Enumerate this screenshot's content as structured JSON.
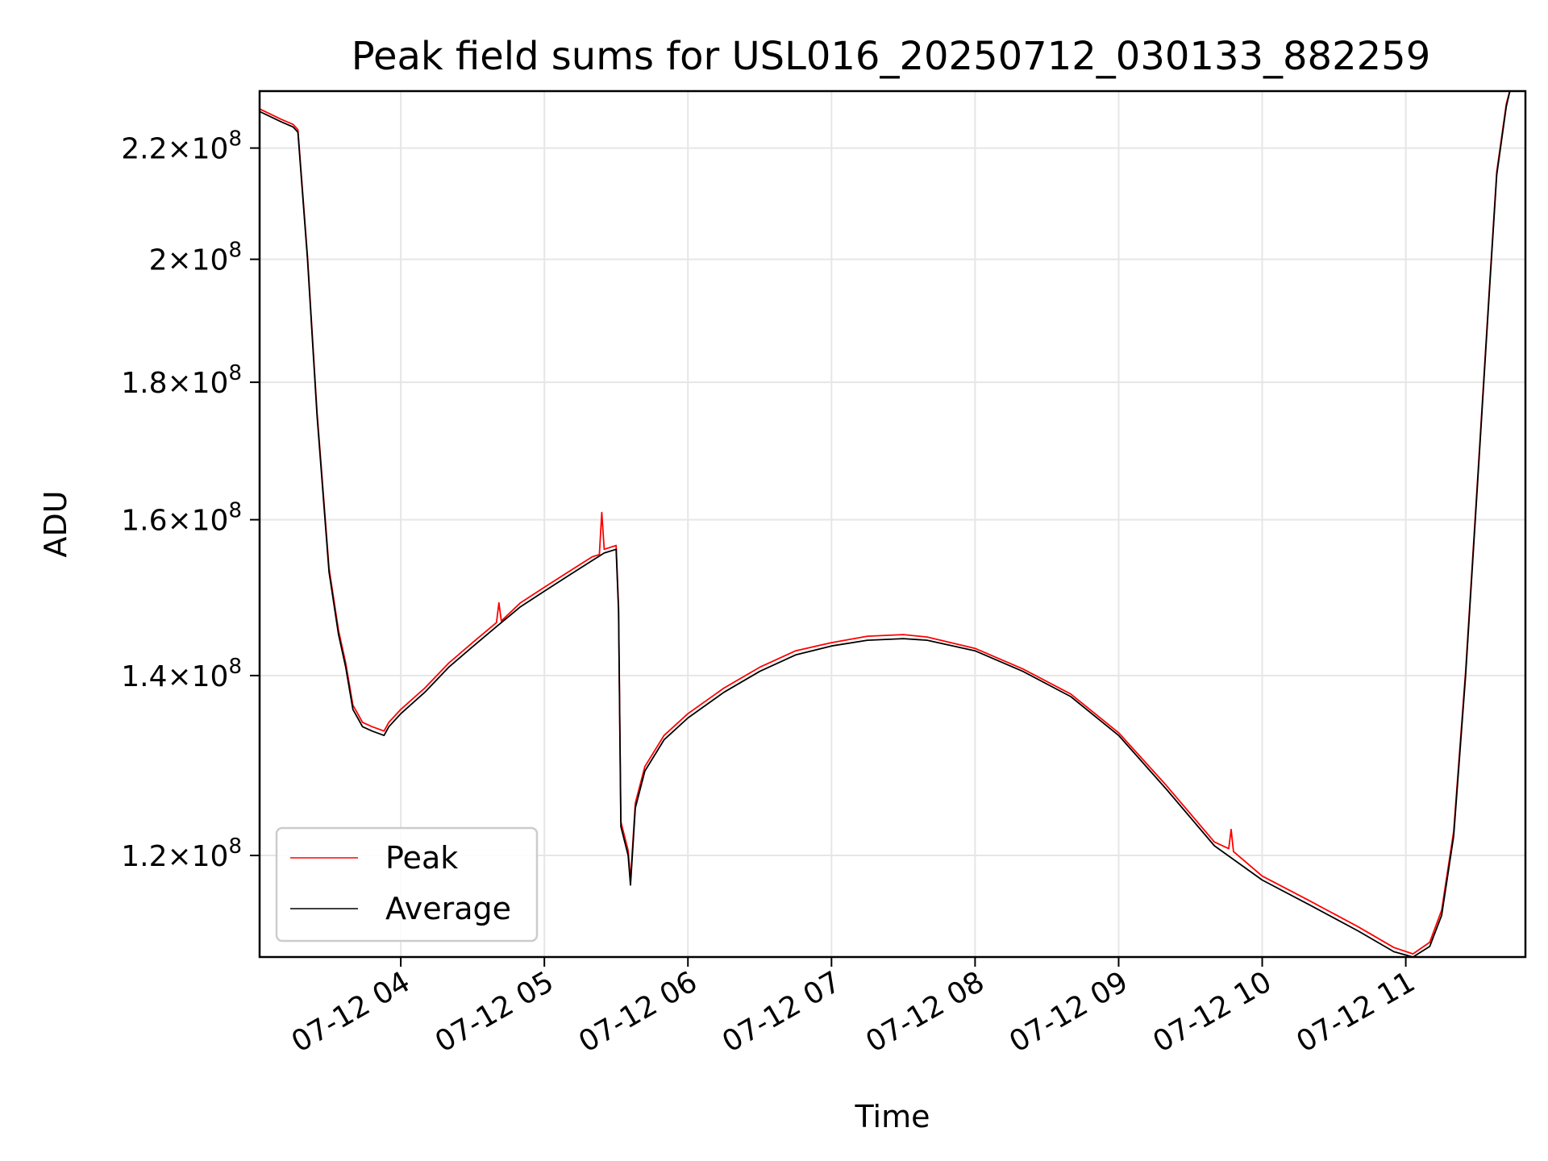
{
  "chart_data": {
    "type": "line",
    "title": "Peak field sums for USL016_20250712_030133_882259",
    "xlabel": "Time",
    "ylabel": "ADU",
    "y_scale": "log",
    "xlim": [
      "2025-07-12 03:01",
      "2025-07-12 11:50"
    ],
    "ylim": [
      110000000,
      231000000
    ],
    "grid": true,
    "legend_position": "lower-left",
    "x_ticks": [
      {
        "value": "2025-07-12 04:00",
        "label": "07-12 04"
      },
      {
        "value": "2025-07-12 05:00",
        "label": "07-12 05"
      },
      {
        "value": "2025-07-12 06:00",
        "label": "07-12 06"
      },
      {
        "value": "2025-07-12 07:00",
        "label": "07-12 07"
      },
      {
        "value": "2025-07-12 08:00",
        "label": "07-12 08"
      },
      {
        "value": "2025-07-12 09:00",
        "label": "07-12 09"
      },
      {
        "value": "2025-07-12 10:00",
        "label": "07-12 10"
      },
      {
        "value": "2025-07-12 11:00",
        "label": "07-12 11"
      }
    ],
    "y_ticks": [
      {
        "value": 120000000,
        "mantissa": "1.2",
        "base": "10",
        "exponent": "8"
      },
      {
        "value": 140000000,
        "mantissa": "1.4",
        "base": "10",
        "exponent": "8"
      },
      {
        "value": 160000000,
        "mantissa": "1.6",
        "base": "10",
        "exponent": "8"
      },
      {
        "value": 180000000,
        "mantissa": "1.8",
        "base": "10",
        "exponent": "8"
      },
      {
        "value": 200000000,
        "mantissa": "2",
        "base": "10",
        "exponent": "8"
      },
      {
        "value": 220000000,
        "mantissa": "2.2",
        "base": "10",
        "exponent": "8"
      }
    ],
    "series": [
      {
        "name": "Average",
        "color": "#000000",
        "x": [
          "2025-07-12 03:01",
          "2025-07-12 03:10",
          "2025-07-12 03:15",
          "2025-07-12 03:17",
          "2025-07-12 03:21",
          "2025-07-12 03:25",
          "2025-07-12 03:30",
          "2025-07-12 03:34",
          "2025-07-12 03:37",
          "2025-07-12 03:40",
          "2025-07-12 03:42",
          "2025-07-12 03:44",
          "2025-07-12 03:48",
          "2025-07-12 03:53",
          "2025-07-12 03:55",
          "2025-07-12 04:00",
          "2025-07-12 04:10",
          "2025-07-12 04:20",
          "2025-07-12 04:30",
          "2025-07-12 04:40",
          "2025-07-12 04:50",
          "2025-07-12 05:00",
          "2025-07-12 05:10",
          "2025-07-12 05:20",
          "2025-07-12 05:25",
          "2025-07-12 05:30",
          "2025-07-12 05:31",
          "2025-07-12 05:32",
          "2025-07-12 05:33",
          "2025-07-12 05:35",
          "2025-07-12 05:36",
          "2025-07-12 05:38",
          "2025-07-12 05:42",
          "2025-07-12 05:50",
          "2025-07-12 06:00",
          "2025-07-12 06:15",
          "2025-07-12 06:30",
          "2025-07-12 06:45",
          "2025-07-12 07:00",
          "2025-07-12 07:15",
          "2025-07-12 07:30",
          "2025-07-12 07:40",
          "2025-07-12 08:00",
          "2025-07-12 08:20",
          "2025-07-12 08:40",
          "2025-07-12 09:00",
          "2025-07-12 09:20",
          "2025-07-12 09:40",
          "2025-07-12 10:00",
          "2025-07-12 10:20",
          "2025-07-12 10:40",
          "2025-07-12 10:55",
          "2025-07-12 11:03",
          "2025-07-12 11:10",
          "2025-07-12 11:15",
          "2025-07-12 11:20",
          "2025-07-12 11:25",
          "2025-07-12 11:30",
          "2025-07-12 11:35",
          "2025-07-12 11:38",
          "2025-07-12 11:42",
          "2025-07-12 11:44"
        ],
        "values": [
          227000000,
          225000000,
          224000000,
          223000000,
          200000000,
          175000000,
          153000000,
          145000000,
          141000000,
          136000000,
          135000000,
          134000000,
          133500000,
          133000000,
          134000000,
          135500000,
          138000000,
          141000000,
          143500000,
          146000000,
          148500000,
          150500000,
          152500000,
          154500000,
          155500000,
          156000000,
          148000000,
          123000000,
          122000000,
          120000000,
          117000000,
          125000000,
          129000000,
          132500000,
          135000000,
          138000000,
          140500000,
          142500000,
          143600000,
          144300000,
          144500000,
          144300000,
          143000000,
          140500000,
          137500000,
          133000000,
          127000000,
          121000000,
          117500000,
          115000000,
          112500000,
          110500000,
          110000000,
          111000000,
          114000000,
          122000000,
          140000000,
          165000000,
          195000000,
          215000000,
          228000000,
          232000000
        ]
      },
      {
        "name": "Peak",
        "color": "#ff0000",
        "x": [
          "2025-07-12 03:01",
          "2025-07-12 03:10",
          "2025-07-12 03:15",
          "2025-07-12 03:17",
          "2025-07-12 03:21",
          "2025-07-12 03:25",
          "2025-07-12 03:30",
          "2025-07-12 03:34",
          "2025-07-12 03:37",
          "2025-07-12 03:40",
          "2025-07-12 03:42",
          "2025-07-12 03:44",
          "2025-07-12 03:48",
          "2025-07-12 03:53",
          "2025-07-12 03:55",
          "2025-07-12 04:00",
          "2025-07-12 04:10",
          "2025-07-12 04:20",
          "2025-07-12 04:30",
          "2025-07-12 04:40",
          "2025-07-12 04:41",
          "2025-07-12 04:42",
          "2025-07-12 04:50",
          "2025-07-12 05:00",
          "2025-07-12 05:10",
          "2025-07-12 05:20",
          "2025-07-12 05:23",
          "2025-07-12 05:24",
          "2025-07-12 05:25",
          "2025-07-12 05:30",
          "2025-07-12 05:31",
          "2025-07-12 05:32",
          "2025-07-12 05:33",
          "2025-07-12 05:35",
          "2025-07-12 05:36",
          "2025-07-12 05:38",
          "2025-07-12 05:42",
          "2025-07-12 05:50",
          "2025-07-12 06:00",
          "2025-07-12 06:15",
          "2025-07-12 06:30",
          "2025-07-12 06:45",
          "2025-07-12 07:00",
          "2025-07-12 07:15",
          "2025-07-12 07:30",
          "2025-07-12 07:40",
          "2025-07-12 08:00",
          "2025-07-12 08:20",
          "2025-07-12 08:40",
          "2025-07-12 09:00",
          "2025-07-12 09:20",
          "2025-07-12 09:40",
          "2025-07-12 09:46",
          "2025-07-12 09:47",
          "2025-07-12 09:48",
          "2025-07-12 10:00",
          "2025-07-12 10:20",
          "2025-07-12 10:40",
          "2025-07-12 10:55",
          "2025-07-12 11:03",
          "2025-07-12 11:10",
          "2025-07-12 11:15",
          "2025-07-12 11:20",
          "2025-07-12 11:25",
          "2025-07-12 11:30",
          "2025-07-12 11:35",
          "2025-07-12 11:38",
          "2025-07-12 11:42",
          "2025-07-12 11:44"
        ],
        "values": [
          227500000,
          225500000,
          224500000,
          223500000,
          200500000,
          175500000,
          153500000,
          145500000,
          141500000,
          136500000,
          135500000,
          134500000,
          134000000,
          133500000,
          134500000,
          136000000,
          138500000,
          141500000,
          144000000,
          146500000,
          149000000,
          146700000,
          149000000,
          151000000,
          153000000,
          155000000,
          155300000,
          161000000,
          156000000,
          156500000,
          148500000,
          123500000,
          122500000,
          120500000,
          117500000,
          125500000,
          129500000,
          133000000,
          135500000,
          138500000,
          141000000,
          143000000,
          144000000,
          144800000,
          145000000,
          144700000,
          143300000,
          140800000,
          137800000,
          133300000,
          127400000,
          121400000,
          120700000,
          122700000,
          120400000,
          117900000,
          115400000,
          112900000,
          110900000,
          110300000,
          111400000,
          114500000,
          122500000,
          140500000,
          165500000,
          195500000,
          215500000,
          228500000,
          232000000
        ]
      }
    ]
  }
}
